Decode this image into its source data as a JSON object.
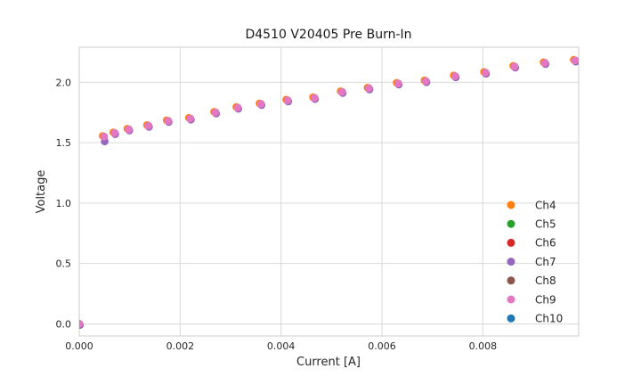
{
  "figure": {
    "background_color": "#ffffff",
    "grid_color": "#d9d9d9",
    "spine_color": "#cccccc",
    "text_color": "#262626"
  },
  "chart_data": {
    "type": "scatter",
    "title": "D4510 V20405 Pre Burn-In",
    "xlabel": "Current [A]",
    "ylabel": "Voltage",
    "xlim": [
      0,
      0.0099
    ],
    "ylim": [
      -0.1,
      2.29
    ],
    "grid": true,
    "legend_position": "lower right",
    "legend_frame": false,
    "xticks": [
      {
        "value": 0.0,
        "label": "0.000"
      },
      {
        "value": 0.002,
        "label": "0.002"
      },
      {
        "value": 0.004,
        "label": "0.004"
      },
      {
        "value": 0.006,
        "label": "0.006"
      },
      {
        "value": 0.008,
        "label": "0.008"
      }
    ],
    "yticks": [
      {
        "value": 0.0,
        "label": "0.0"
      },
      {
        "value": 0.5,
        "label": "0.5"
      },
      {
        "value": 1.0,
        "label": "1.0"
      },
      {
        "value": 1.5,
        "label": "1.5"
      },
      {
        "value": 2.0,
        "label": "2.0"
      }
    ],
    "x": [
      0,
      0.00049,
      0.0007,
      0.00098,
      0.00137,
      0.00176,
      0.0022,
      0.0027,
      0.00314,
      0.0036,
      0.00413,
      0.00466,
      0.00521,
      0.00574,
      0.00632,
      0.00687,
      0.00745,
      0.00805,
      0.00863,
      0.00923,
      0.00983
    ],
    "series": [
      {
        "name": "Ch4",
        "color": "#ff7f0e",
        "values": [
          0.0,
          1.55,
          1.58,
          1.61,
          1.64,
          1.68,
          1.7,
          1.75,
          1.79,
          1.82,
          1.85,
          1.87,
          1.92,
          1.95,
          1.99,
          2.01,
          2.05,
          2.08,
          2.13,
          2.16,
          2.18
        ]
      },
      {
        "name": "Ch5",
        "color": "#2ca02c",
        "values": [
          0.0,
          1.55,
          1.58,
          1.61,
          1.64,
          1.68,
          1.7,
          1.75,
          1.79,
          1.82,
          1.85,
          1.87,
          1.92,
          1.95,
          1.99,
          2.01,
          2.05,
          2.08,
          2.13,
          2.16,
          2.18
        ]
      },
      {
        "name": "Ch6",
        "color": "#d62728",
        "values": [
          0.0,
          1.55,
          1.58,
          1.61,
          1.64,
          1.68,
          1.7,
          1.75,
          1.79,
          1.82,
          1.85,
          1.87,
          1.92,
          1.95,
          1.99,
          2.01,
          2.05,
          2.08,
          2.13,
          2.16,
          2.18
        ]
      },
      {
        "name": "Ch7",
        "color": "#9467bd",
        "values": [
          0.0,
          1.52,
          1.58,
          1.61,
          1.64,
          1.68,
          1.7,
          1.75,
          1.79,
          1.82,
          1.85,
          1.87,
          1.92,
          1.95,
          1.99,
          2.01,
          2.05,
          2.08,
          2.13,
          2.16,
          2.18
        ]
      },
      {
        "name": "Ch8",
        "color": "#8c564b",
        "values": [
          0.0,
          1.55,
          1.58,
          1.61,
          1.64,
          1.68,
          1.7,
          1.75,
          1.79,
          1.82,
          1.85,
          1.87,
          1.92,
          1.95,
          1.99,
          2.01,
          2.05,
          2.08,
          2.13,
          2.16,
          2.18
        ]
      },
      {
        "name": "Ch9",
        "color": "#e377c2",
        "values": [
          0.0,
          1.55,
          1.58,
          1.61,
          1.64,
          1.68,
          1.7,
          1.75,
          1.79,
          1.82,
          1.85,
          1.87,
          1.92,
          1.95,
          1.99,
          2.01,
          2.05,
          2.08,
          2.13,
          2.16,
          2.18
        ]
      },
      {
        "name": "Ch10",
        "color": "#1f77b4",
        "values": [
          0.0,
          1.55,
          1.58,
          1.61,
          1.64,
          1.68,
          1.7,
          1.75,
          1.79,
          1.82,
          1.85,
          1.87,
          1.92,
          1.95,
          1.99,
          2.01,
          2.05,
          2.08,
          2.13,
          2.16,
          2.18
        ]
      }
    ]
  }
}
